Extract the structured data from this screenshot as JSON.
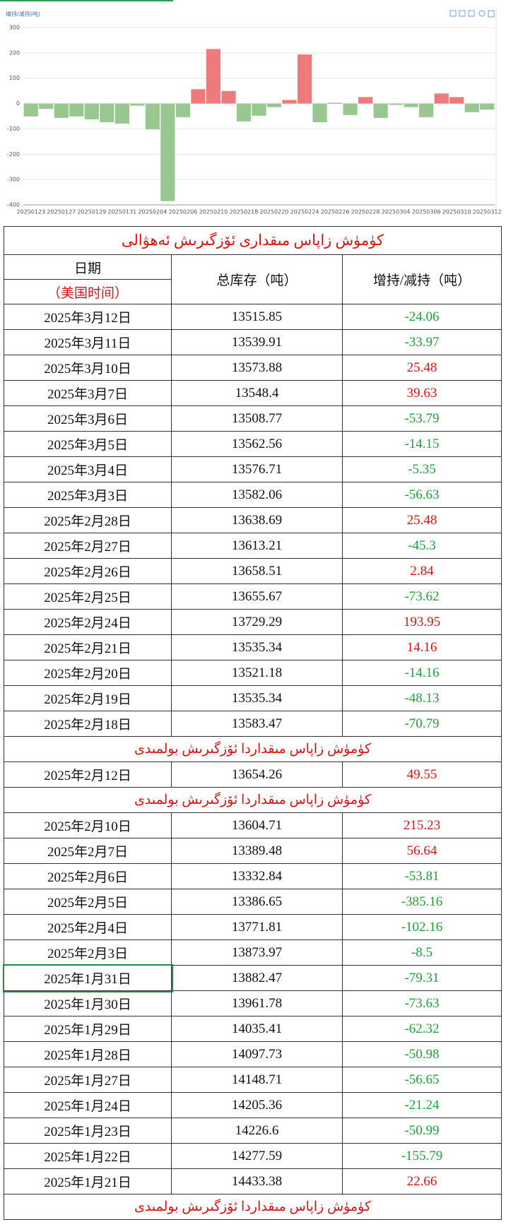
{
  "chart_data": {
    "type": "bar",
    "y_label": "增持/减持(吨)",
    "categories": [
      "20250123",
      null,
      "20250127",
      null,
      "20250129",
      null,
      "20250131",
      null,
      "20250204",
      null,
      "20250206",
      null,
      "20250210",
      null,
      "20250218",
      null,
      "20250220",
      null,
      "20250224",
      null,
      "20250226",
      null,
      "20250228",
      null,
      "20250304",
      null,
      "20250306",
      null,
      "20250310",
      null,
      "20250312"
    ],
    "values": [
      -50.99,
      -21.24,
      -56.65,
      -50.98,
      -62.32,
      -73.63,
      -79.31,
      -8.5,
      -102.16,
      -385.16,
      -53.81,
      56.64,
      215.23,
      49.55,
      -70.79,
      -48.13,
      -14.16,
      14.16,
      193.95,
      -73.62,
      2.84,
      -45.3,
      25.48,
      -56.63,
      -5.35,
      -14.15,
      -53.79,
      39.63,
      25.48,
      -33.97,
      -24.06
    ],
    "positive_color": "#ee7b7b",
    "negative_color": "#98c78f",
    "ylim": [
      -400,
      300
    ],
    "yticks": [
      -400,
      -300,
      -200,
      -100,
      0,
      100,
      200,
      300
    ],
    "grid": true
  },
  "table": {
    "title": "كۈمۈش زاپاس مىقدارى ئۆزگىرىش ئەھۋالى",
    "header": {
      "date": "日期",
      "date_note": "（美国时间）",
      "total": "总库存（吨）",
      "change": "增持/减持（吨）"
    },
    "rows": [
      {
        "date": "2025年3月12日",
        "total": "13515.85",
        "change": "-24.06"
      },
      {
        "date": "2025年3月11日",
        "total": "13539.91",
        "change": "-33.97"
      },
      {
        "date": "2025年3月10日",
        "total": "13573.88",
        "change": "25.48"
      },
      {
        "date": "2025年3月7日",
        "total": "13548.4",
        "change": "39.63"
      },
      {
        "date": "2025年3月6日",
        "total": "13508.77",
        "change": "-53.79"
      },
      {
        "date": "2025年3月5日",
        "total": "13562.56",
        "change": "-14.15"
      },
      {
        "date": "2025年3月4日",
        "total": "13576.71",
        "change": "-5.35"
      },
      {
        "date": "2025年3月3日",
        "total": "13582.06",
        "change": "-56.63"
      },
      {
        "date": "2025年2月28日",
        "total": "13638.69",
        "change": "25.48"
      },
      {
        "date": "2025年2月27日",
        "total": "13613.21",
        "change": "-45.3"
      },
      {
        "date": "2025年2月26日",
        "total": "13658.51",
        "change": "2.84"
      },
      {
        "date": "2025年2月25日",
        "total": "13655.67",
        "change": "-73.62"
      },
      {
        "date": "2025年2月24日",
        "total": "13729.29",
        "change": "193.95"
      },
      {
        "date": "2025年2月21日",
        "total": "13535.34",
        "change": "14.16"
      },
      {
        "date": "2025年2月20日",
        "total": "13521.18",
        "change": "-14.16"
      },
      {
        "date": "2025年2月19日",
        "total": "13535.34",
        "change": "-48.13"
      },
      {
        "date": "2025年2月18日",
        "total": "13583.47",
        "change": "-70.79"
      },
      {
        "note": "كۈمۈش زاپاس مىقداردا ئۆزگىرىش بولمىدى"
      },
      {
        "date": "2025年2月12日",
        "total": "13654.26",
        "change": "49.55"
      },
      {
        "note": "كۈمۈش زاپاس مىقداردا ئۆزگىرىش بولمىدى"
      },
      {
        "date": "2025年2月10日",
        "total": "13604.71",
        "change": "215.23"
      },
      {
        "date": "2025年2月7日",
        "total": "13389.48",
        "change": "56.64"
      },
      {
        "date": "2025年2月6日",
        "total": "13332.84",
        "change": "-53.81"
      },
      {
        "date": "2025年2月5日",
        "total": "13386.65",
        "change": "-385.16"
      },
      {
        "date": "2025年2月4日",
        "total": "13771.81",
        "change": "-102.16"
      },
      {
        "date": "2025年2月3日",
        "total": "13873.97",
        "change": "-8.5"
      },
      {
        "date": "2025年1月31日",
        "total": "13882.47",
        "change": "-79.31"
      },
      {
        "date": "2025年1月30日",
        "total": "13961.78",
        "change": "-73.63"
      },
      {
        "date": "2025年1月29日",
        "total": "14035.41",
        "change": "-62.32"
      },
      {
        "date": "2025年1月28日",
        "total": "14097.73",
        "change": "-50.98"
      },
      {
        "date": "2025年1月27日",
        "total": "14148.71",
        "change": "-56.65"
      },
      {
        "date": "2025年1月24日",
        "total": "14205.36",
        "change": "-21.24"
      },
      {
        "date": "2025年1月23日",
        "total": "14226.6",
        "change": "-50.99"
      },
      {
        "date": "2025年1月22日",
        "total": "14277.59",
        "change": "-155.79"
      },
      {
        "date": "2025年1月21日",
        "total": "14433.38",
        "change": "22.66"
      },
      {
        "note": "كۈمۈش زاپاس مىقداردا ئۆزگىرىش بولمىدى"
      }
    ]
  }
}
